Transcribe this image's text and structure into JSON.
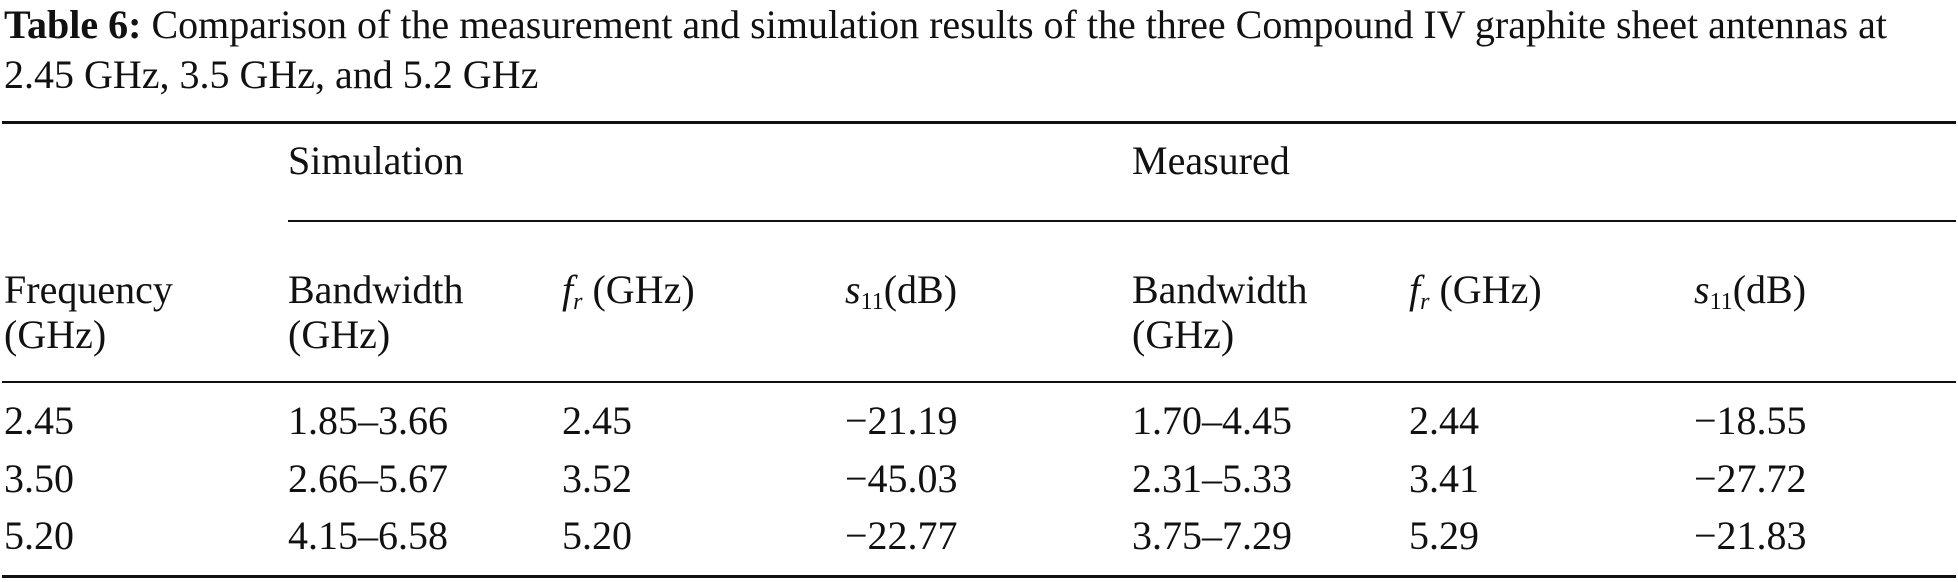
{
  "caption": {
    "label": "Table 6:",
    "text": "Comparison of the measurement and simulation results of the three Compound IV graphite sheet antennas at 2.45 GHz, 3.5 GHz, and 5.2 GHz"
  },
  "table": {
    "groups": [
      "Simulation",
      "Measured"
    ],
    "headers": {
      "frequency": [
        "Frequency",
        "(GHz)"
      ],
      "bandwidth": [
        "Bandwidth",
        "(GHz)"
      ],
      "fr": {
        "symbol": "f",
        "sub": "r",
        "unit": "(GHz)"
      },
      "s11": {
        "symbol": "s",
        "sub": "11",
        "unit": "(dB)"
      }
    },
    "rows": [
      [
        "2.45",
        "1.85–3.66",
        "2.45",
        "−21.19",
        "1.70–4.45",
        "2.44",
        "−18.55"
      ],
      [
        "3.50",
        "2.66–5.67",
        "3.52",
        "−45.03",
        "2.31–5.33",
        "3.41",
        "−27.72"
      ],
      [
        "5.20",
        "4.15–6.58",
        "5.20",
        "−22.77",
        "3.75–7.29",
        "5.29",
        "−21.83"
      ]
    ]
  }
}
